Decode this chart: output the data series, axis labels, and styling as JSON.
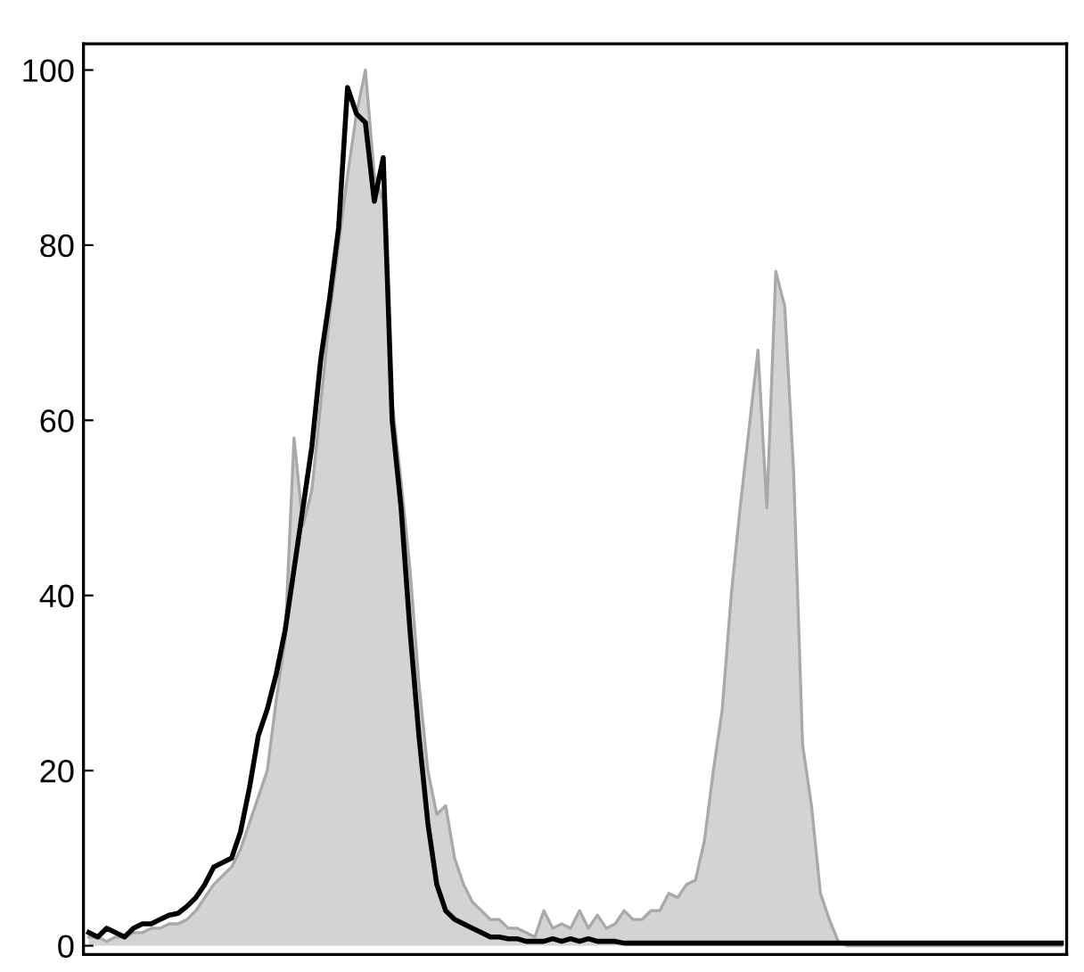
{
  "chart_data": {
    "type": "area",
    "categories": [
      null,
      null,
      null,
      null,
      null,
      null,
      null,
      null,
      null,
      null,
      null,
      null,
      null,
      null,
      null,
      null,
      null,
      null,
      null,
      null,
      null,
      null,
      null,
      null,
      null,
      null,
      null,
      null,
      null,
      null,
      null,
      null,
      null,
      null,
      null,
      null,
      null,
      null,
      null,
      null,
      null,
      null,
      null,
      null,
      null,
      null,
      null,
      null,
      null,
      null,
      null,
      null,
      null,
      null,
      null,
      null,
      null,
      null,
      null,
      null,
      null,
      null,
      null,
      null,
      null,
      null,
      null,
      null,
      null,
      null,
      null,
      null,
      null,
      null,
      null,
      null,
      null,
      null,
      null,
      null,
      null,
      null,
      null,
      null,
      null,
      null,
      null,
      null,
      null,
      null,
      null,
      null,
      null,
      null,
      null,
      null,
      null,
      null,
      null,
      null,
      null,
      null,
      null,
      null,
      null,
      null,
      null,
      null,
      null,
      null
    ],
    "series": [
      {
        "color": "#d3d3d3",
        "values": [
          1,
          1,
          0.5,
          1,
          1,
          1.5,
          1.5,
          2,
          2,
          2.5,
          2.5,
          3,
          4,
          5.5,
          7,
          8,
          9,
          11,
          14,
          17,
          20,
          28,
          35,
          58,
          48,
          52,
          62,
          72,
          80,
          88,
          95,
          100,
          88,
          85,
          62,
          53,
          43,
          30,
          20,
          15,
          16,
          10,
          7,
          5,
          4,
          3,
          3,
          2,
          2,
          1.5,
          1,
          4,
          2,
          2.5,
          2,
          4,
          2,
          3.5,
          2,
          2.5,
          4,
          3,
          3,
          4,
          4,
          6,
          5.5,
          7,
          7.5,
          12,
          20,
          27,
          40,
          50,
          59,
          68,
          50,
          77,
          73,
          54,
          23,
          16,
          6,
          3,
          0.5,
          0,
          0,
          0,
          0,
          0,
          0,
          0,
          0,
          0,
          0,
          0,
          0,
          0,
          0,
          0,
          0,
          0,
          0,
          0,
          0,
          0,
          0,
          0,
          0,
          0
        ]
      },
      {
        "type": "line",
        "color": "#000000",
        "values": [
          1.5,
          1,
          2,
          1.5,
          1,
          2,
          2.5,
          2.5,
          3,
          3.5,
          3.7,
          4.5,
          5.5,
          7,
          9,
          9.5,
          10,
          13,
          18,
          24,
          27,
          31,
          36,
          43,
          50,
          57,
          67,
          74,
          82,
          98,
          95,
          94,
          85,
          90,
          60,
          50,
          36,
          24,
          14,
          7,
          4,
          3,
          2.5,
          2,
          1.5,
          1,
          1,
          0.8,
          0.8,
          0.5,
          0.5,
          0.5,
          0.8,
          0.5,
          0.8,
          0.5,
          0.8,
          0.5,
          0.5,
          0.5,
          0.3,
          0.3,
          0.3,
          0.3,
          0.3,
          0.3,
          0.3,
          0.3,
          0.3,
          0.3,
          0.3,
          0.3,
          0.3,
          0.3,
          0.3,
          0.3,
          0.3,
          0.3,
          0.3,
          0.3,
          0.3,
          0.3,
          0.3,
          0.3,
          0.3,
          0.3,
          0.3,
          0.3,
          0.3,
          0.3,
          0.3,
          0.3,
          0.3,
          0.3,
          0.3,
          0.3,
          0.3,
          0.3,
          0.3,
          0.3,
          0.3,
          0.3,
          0.3,
          0.3,
          0.3,
          0.3,
          0.3,
          0.3,
          0.3,
          0.3
        ]
      }
    ],
    "ylim": [
      -1,
      103
    ],
    "yticks": [
      0,
      20,
      40,
      60,
      80,
      100
    ],
    "tick_labels": "y",
    "grid": false,
    "legend": false
  }
}
